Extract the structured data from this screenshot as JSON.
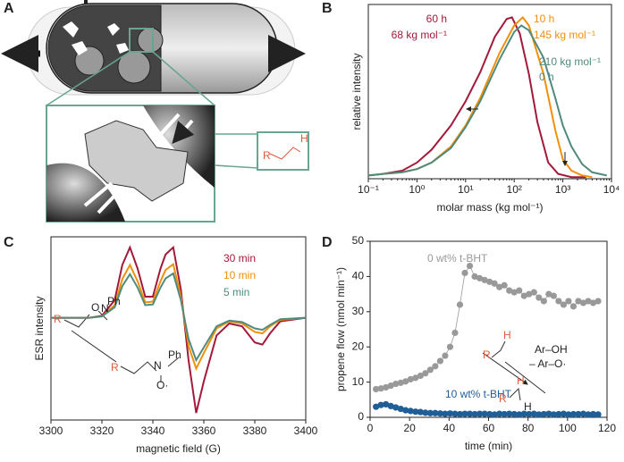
{
  "panel_labels": [
    "A",
    "B",
    "C",
    "D"
  ],
  "diagram": {
    "labels": [
      "R",
      "H"
    ]
  },
  "chart_data": [
    {
      "type": "line",
      "xscale": "log",
      "x_label": "molar mass (kg mol⁻¹)",
      "y_label": "relative intensity",
      "xlim": [
        0.1,
        10000
      ],
      "ylim": [
        0,
        1.08
      ],
      "xticks": [
        {
          "value": 0.1,
          "label": "10⁻¹"
        },
        {
          "value": 1,
          "label": "10⁰"
        },
        {
          "value": 10,
          "label": "10¹"
        },
        {
          "value": 100,
          "label": "10²"
        },
        {
          "value": 1000,
          "label": "10³"
        },
        {
          "value": 10000,
          "label": "10⁴"
        }
      ],
      "annotations": [
        "68 kg mol⁻¹",
        "145 kg mol⁻¹",
        "210 kg mol⁻¹"
      ],
      "series": [
        {
          "name": "60 h",
          "color": "#a3193a",
          "x": [
            0.1,
            0.2,
            0.5,
            1,
            2,
            5,
            10,
            20,
            40,
            70,
            90,
            130,
            200,
            300,
            500,
            800,
            1500,
            3000
          ],
          "values": [
            0.02,
            0.03,
            0.05,
            0.1,
            0.18,
            0.33,
            0.48,
            0.66,
            0.88,
            0.99,
            1.0,
            0.9,
            0.65,
            0.35,
            0.1,
            0.03,
            0.01,
            0.01
          ]
        },
        {
          "name": "10 h",
          "color": "#f0900a",
          "x": [
            0.1,
            0.2,
            0.5,
            1,
            2,
            5,
            10,
            20,
            50,
            100,
            150,
            200,
            400,
            700,
            1000,
            1500,
            2500,
            4000
          ],
          "values": [
            0.02,
            0.03,
            0.04,
            0.06,
            0.1,
            0.2,
            0.33,
            0.5,
            0.78,
            0.95,
            1.0,
            0.95,
            0.65,
            0.3,
            0.12,
            0.05,
            0.02,
            0.01
          ]
        },
        {
          "name": "0 h",
          "color": "#4f8a7d",
          "x": [
            0.1,
            0.2,
            0.5,
            1,
            2,
            5,
            10,
            20,
            50,
            100,
            140,
            200,
            400,
            700,
            1000,
            1500,
            2500,
            4000,
            8000
          ],
          "values": [
            0.02,
            0.03,
            0.04,
            0.06,
            0.1,
            0.19,
            0.32,
            0.48,
            0.74,
            0.91,
            0.95,
            0.92,
            0.75,
            0.5,
            0.33,
            0.2,
            0.09,
            0.04,
            0.02
          ]
        }
      ]
    },
    {
      "type": "line",
      "x_label": "magnetic field (G)",
      "y_label": "ESR intensity",
      "xlim": [
        3300,
        3400
      ],
      "ylim": [
        -1.45,
        1.15
      ],
      "xticks": [
        3300,
        3320,
        3340,
        3360,
        3380,
        3400
      ],
      "chem_labels": [
        "R",
        "N",
        "Ph",
        "O",
        "R",
        "N",
        "Ph",
        "O·"
      ],
      "series": [
        {
          "name": "30 min",
          "color": "#a3193a",
          "x": [
            3300,
            3315,
            3320,
            3325,
            3328,
            3331,
            3334,
            3337,
            3340,
            3343,
            3345,
            3348,
            3351,
            3354,
            3357,
            3360,
            3365,
            3370,
            3375,
            3380,
            3383,
            3386,
            3390,
            3400
          ],
          "values": [
            0,
            0,
            0.03,
            0.25,
            0.75,
            1.0,
            0.7,
            0.3,
            0.3,
            0.7,
            0.9,
            1.0,
            0.4,
            -0.6,
            -1.35,
            -0.9,
            -0.25,
            -0.08,
            -0.12,
            -0.35,
            -0.38,
            -0.22,
            -0.05,
            0
          ]
        },
        {
          "name": "10 min",
          "color": "#f0900a",
          "x": [
            3300,
            3315,
            3320,
            3325,
            3328,
            3331,
            3334,
            3337,
            3340,
            3343,
            3345,
            3348,
            3351,
            3354,
            3357,
            3360,
            3365,
            3370,
            3375,
            3380,
            3383,
            3386,
            3390,
            3400
          ],
          "values": [
            0,
            0,
            0.02,
            0.18,
            0.55,
            0.75,
            0.52,
            0.22,
            0.23,
            0.52,
            0.68,
            0.76,
            0.3,
            -0.4,
            -0.72,
            -0.5,
            -0.15,
            -0.05,
            -0.08,
            -0.2,
            -0.22,
            -0.12,
            -0.03,
            0
          ]
        },
        {
          "name": "5 min",
          "color": "#4f8a7d",
          "x": [
            3300,
            3315,
            3320,
            3325,
            3328,
            3331,
            3334,
            3337,
            3340,
            3343,
            3345,
            3348,
            3351,
            3354,
            3357,
            3360,
            3365,
            3370,
            3375,
            3380,
            3383,
            3386,
            3390,
            3400
          ],
          "values": [
            0,
            0,
            0.02,
            0.15,
            0.45,
            0.62,
            0.43,
            0.18,
            0.19,
            0.43,
            0.56,
            0.63,
            0.25,
            -0.3,
            -0.6,
            -0.42,
            -0.12,
            -0.04,
            -0.06,
            -0.15,
            -0.17,
            -0.1,
            -0.02,
            0
          ]
        }
      ]
    },
    {
      "type": "scatter",
      "x_label": "time (min)",
      "y_label": "propene flow (nmol min⁻¹)",
      "xlim": [
        0,
        120
      ],
      "ylim": [
        0,
        50
      ],
      "xticks": [
        0,
        20,
        40,
        60,
        80,
        100,
        120
      ],
      "yticks": [
        0,
        10,
        20,
        30,
        40,
        50
      ],
      "chem_labels": [
        "R",
        "H",
        "Ar–OH",
        "– Ar–O·",
        "R",
        "H",
        "H"
      ],
      "x": [
        3,
        5.5,
        8,
        10.5,
        13,
        15.5,
        18,
        20.5,
        23,
        25.5,
        28,
        30.5,
        33,
        35.5,
        38,
        40.5,
        43,
        45.5,
        48,
        50.5,
        53,
        55.5,
        58,
        60.5,
        63,
        65.5,
        68,
        70.5,
        73,
        75.5,
        78,
        80.5,
        83,
        85.5,
        88,
        90.5,
        93,
        95.5,
        98,
        100.5,
        103,
        105.5,
        108,
        110.5,
        113,
        115.5
      ],
      "series": [
        {
          "name": "0 wt% t-BHT",
          "color": "#999999",
          "values": [
            8,
            8.2,
            8.5,
            9,
            9.5,
            9.8,
            10.2,
            10.8,
            11.2,
            11.8,
            12.5,
            13.5,
            14.5,
            16,
            17.5,
            20,
            24,
            32,
            41,
            43,
            40,
            39.5,
            39,
            38.5,
            38,
            37,
            37.5,
            36,
            35.5,
            36,
            34.5,
            35,
            35.5,
            34,
            33,
            35,
            34.5,
            33,
            32,
            33,
            31.5,
            33,
            32.5,
            33,
            32.5,
            33
          ]
        },
        {
          "name": "10 wt% t-BHT",
          "color": "#1f5e96",
          "values": [
            3,
            3.5,
            3.7,
            3.2,
            2.8,
            2.4,
            2,
            1.8,
            1.6,
            1.5,
            1.3,
            1.2,
            1.2,
            1.1,
            1,
            1.1,
            1,
            0.9,
            1,
            1,
            0.9,
            1,
            1,
            0.9,
            0.8,
            1,
            0.9,
            1,
            0.9,
            0.8,
            1,
            0.9,
            1,
            0.8,
            0.9,
            1,
            0.8,
            0.9,
            1,
            0.8,
            0.9,
            0.9,
            1,
            0.8,
            0.9,
            0.8
          ]
        }
      ]
    }
  ]
}
